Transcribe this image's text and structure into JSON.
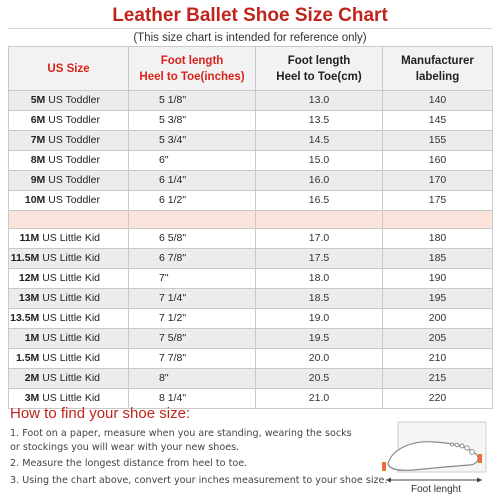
{
  "title": "Leather Ballet Shoe Size Chart",
  "subtitle": "(This size chart is intended for reference only)",
  "table": {
    "headers": {
      "us_size": "US Size",
      "inch_line1": "Foot length",
      "inch_line2": "Heel to Toe(inches)",
      "cm_line1": "Foot length",
      "cm_line2": "Heel to Toe(cm)",
      "mfr_line1": "Manufacturer",
      "mfr_line2": "labeling"
    },
    "toddler_rows": [
      {
        "size": "5M",
        "group": "US Toddler",
        "inches": "5 1/8\"",
        "cm": "13.0",
        "label": "140"
      },
      {
        "size": "6M",
        "group": "US Toddler",
        "inches": "5 3/8\"",
        "cm": "13.5",
        "label": "145"
      },
      {
        "size": "7M",
        "group": "US Toddler",
        "inches": "5 3/4\"",
        "cm": "14.5",
        "label": "155"
      },
      {
        "size": "8M",
        "group": "US Toddler",
        "inches": "6\"",
        "cm": "15.0",
        "label": "160"
      },
      {
        "size": "9M",
        "group": "US Toddler",
        "inches": "6 1/4\"",
        "cm": "16.0",
        "label": "170"
      },
      {
        "size": "10M",
        "group": "US Toddler",
        "inches": "6 1/2\"",
        "cm": "16.5",
        "label": "175"
      }
    ],
    "kid_rows": [
      {
        "size": "11M",
        "group": "US Little Kid",
        "inches": "6 5/8\"",
        "cm": "17.0",
        "label": "180"
      },
      {
        "size": "11.5M",
        "group": "US Little Kid",
        "inches": "6 7/8\"",
        "cm": "17.5",
        "label": "185"
      },
      {
        "size": "12M",
        "group": "US Little Kid",
        "inches": "7\"",
        "cm": "18.0",
        "label": "190"
      },
      {
        "size": "13M",
        "group": "US Little Kid",
        "inches": "7 1/4\"",
        "cm": "18.5",
        "label": "195"
      },
      {
        "size": "13.5M",
        "group": "US Little Kid",
        "inches": "7 1/2\"",
        "cm": "19.0",
        "label": "200"
      },
      {
        "size": "1M",
        "group": "US Little Kid",
        "inches": "7 5/8\"",
        "cm": "19.5",
        "label": "205"
      },
      {
        "size": "1.5M",
        "group": "US Little Kid",
        "inches": "7 7/8\"",
        "cm": "20.0",
        "label": "210"
      },
      {
        "size": "2M",
        "group": "US Little Kid",
        "inches": "8\"",
        "cm": "20.5",
        "label": "215"
      },
      {
        "size": "3M",
        "group": "US Little Kid",
        "inches": "8 1/4\"",
        "cm": "21.0",
        "label": "220"
      }
    ]
  },
  "howto": {
    "title": "How to find your shoe size:",
    "lines": [
      "1. Foot on a paper, measure when you are standing, wearing the socks",
      "or stockings you will wear with your new shoes.",
      "2. Measure the longest distance from heel to toe.",
      "3. Using the chart above, convert your inches measurement to your shoe size."
    ],
    "figure_label": "Foot lenght"
  },
  "colors": {
    "title_red": "#c0241c",
    "header_pink": "#f4d9d7",
    "row_gray": "#ececec",
    "spacer_peach": "#fae3da",
    "foot_mark_orange": "#e8703a"
  }
}
